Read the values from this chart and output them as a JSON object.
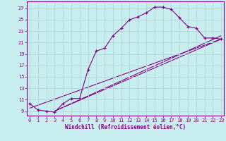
{
  "xlabel": "Windchill (Refroidissement éolien,°C)",
  "bg_color": "#c8eef0",
  "grid_color": "#b0d8dc",
  "line_color": "#800080",
  "x_ticks": [
    0,
    1,
    2,
    3,
    4,
    5,
    6,
    7,
    8,
    9,
    10,
    11,
    12,
    13,
    14,
    15,
    16,
    17,
    18,
    19,
    20,
    21,
    22,
    23
  ],
  "y_ticks": [
    9,
    11,
    13,
    15,
    17,
    19,
    21,
    23,
    25,
    27
  ],
  "xlim": [
    -0.3,
    23.3
  ],
  "ylim": [
    8.2,
    28.2
  ],
  "curve1_x": [
    0,
    1,
    2,
    3,
    4,
    5,
    6,
    7,
    8,
    9,
    10,
    11,
    12,
    13,
    14,
    15,
    16,
    17,
    18,
    19,
    20,
    21,
    22,
    23
  ],
  "curve1_y": [
    10.3,
    9.2,
    9.0,
    8.8,
    10.3,
    11.2,
    11.2,
    16.2,
    19.5,
    20.0,
    22.2,
    23.5,
    25.0,
    25.5,
    26.2,
    27.2,
    27.2,
    26.8,
    25.3,
    23.8,
    23.5,
    21.8,
    21.8,
    21.6
  ],
  "line1_x": [
    0,
    23
  ],
  "line1_y": [
    9.5,
    21.6
  ],
  "line2_x": [
    3,
    23
  ],
  "line2_y": [
    9.0,
    21.6
  ],
  "line3_x": [
    3,
    23
  ],
  "line3_y": [
    9.0,
    22.2
  ]
}
